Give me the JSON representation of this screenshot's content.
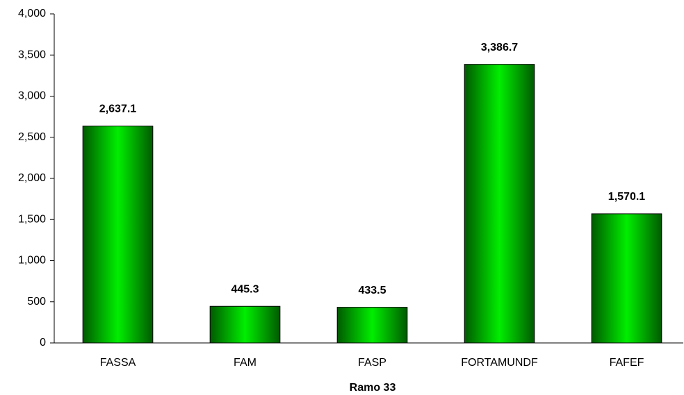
{
  "chart_data": {
    "type": "bar",
    "x_label": "Ramo 33",
    "categories": [
      "FASSA",
      "FAM",
      "FASP",
      "FORTAMUNDF",
      "FAFEF"
    ],
    "values": [
      2637.1,
      445.3,
      433.5,
      3386.7,
      1570.1
    ],
    "value_labels": [
      "2,637.1",
      "445.3",
      "433.5",
      "3,386.7",
      "1,570.1"
    ],
    "color": "#00ee00",
    "ylim": [
      0,
      4000
    ],
    "yticks": [
      0,
      500,
      {
        "value": 1000,
        "label": "1,000"
      },
      {
        "value": 1500,
        "label": "1,500"
      },
      {
        "value": 2000,
        "label": "2,000"
      },
      {
        "value": 2500,
        "label": "2,500"
      },
      {
        "value": 3000,
        "label": "3,000"
      },
      {
        "value": 3500,
        "label": "3,500"
      },
      {
        "value": 4000,
        "label": "4,000"
      }
    ],
    "grid": false
  }
}
